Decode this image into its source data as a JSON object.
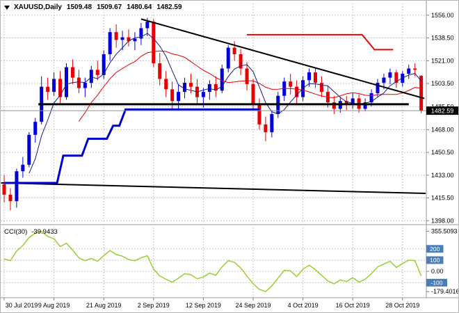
{
  "title_bar": {
    "symbol": "XAUUSD,Daily",
    "open": "1509.48",
    "high": "1509.67",
    "low": "1480.64",
    "close": "1482.59"
  },
  "indicator_panel": {
    "label": "CCI(30)",
    "value": "-39.9433"
  },
  "colors": {
    "bull": "#0000dd",
    "bear": "#e60000",
    "ma_fast": "#1a1a86",
    "ma_slow": "#e60000",
    "grid": "#c6c6c6",
    "object_black": "#000000",
    "object_blue": "#0000cc",
    "object_red": "#f00000",
    "cci_line": "#9acd32",
    "badge_blue": "#4a7ebb",
    "badge_text": "#ffffff",
    "price_badge_bg": "#000000",
    "price_badge_text": "#ffffff",
    "axis_text": "#000000",
    "separator": "#9a9a9a",
    "tick": "#808080",
    "current_price_line": "#909090"
  },
  "chart_data": {
    "type": "candlestick",
    "symbol": "XAUUSD",
    "timeframe": "Daily",
    "current_price": {
      "value": 1482.59,
      "text": "1482.59"
    },
    "price_axis": {
      "min": 1396,
      "max": 1565,
      "labels": [
        {
          "value": 1556,
          "text": "1556.00"
        },
        {
          "value": 1538.5,
          "text": "1538.50"
        },
        {
          "value": 1521,
          "text": "1521.00"
        },
        {
          "value": 1503.5,
          "text": "1503.50"
        },
        {
          "value": 1485.5,
          "text": "1485.50"
        },
        {
          "value": 1468,
          "text": "1468.00"
        },
        {
          "value": 1450.5,
          "text": "1450.50"
        },
        {
          "value": 1433,
          "text": "1433.00"
        },
        {
          "value": 1415.5,
          "text": "1415.50"
        },
        {
          "value": 1398,
          "text": "1398.00"
        }
      ]
    },
    "time_axis": {
      "labels": [
        {
          "text": "30 Jul 2019",
          "index": 0
        },
        {
          "text": "9 Aug 2019",
          "index": 8
        },
        {
          "text": "21 Aug 2019",
          "index": 16
        },
        {
          "text": "2 Sep 2019",
          "index": 24
        },
        {
          "text": "12 Sep 2019",
          "index": 32
        },
        {
          "text": "24 Sep 2019",
          "index": 40
        },
        {
          "text": "4 Oct 2019",
          "index": 48
        },
        {
          "text": "16 Oct 2019",
          "index": 56
        },
        {
          "text": "28 Oct 2019",
          "index": 64
        }
      ]
    },
    "candles": [
      [
        1426,
        1433,
        1412,
        1418
      ],
      [
        1418,
        1423,
        1406,
        1413
      ],
      [
        1413,
        1438,
        1408,
        1436
      ],
      [
        1436,
        1447,
        1431,
        1441
      ],
      [
        1441,
        1466,
        1439,
        1464
      ],
      [
        1464,
        1477,
        1458,
        1474
      ],
      [
        1474,
        1509,
        1472,
        1501
      ],
      [
        1501,
        1508,
        1491,
        1497
      ],
      [
        1497,
        1512,
        1494,
        1507
      ],
      [
        1507,
        1513,
        1487,
        1493
      ],
      [
        1493,
        1519,
        1491,
        1516
      ],
      [
        1516,
        1522,
        1503,
        1508
      ],
      [
        1508,
        1514,
        1496,
        1500
      ],
      [
        1500,
        1508,
        1493,
        1504
      ],
      [
        1504,
        1517,
        1500,
        1514
      ],
      [
        1514,
        1521,
        1506,
        1510
      ],
      [
        1510,
        1529,
        1507,
        1526
      ],
      [
        1526,
        1546,
        1521,
        1543
      ],
      [
        1543,
        1549,
        1531,
        1537
      ],
      [
        1537,
        1544,
        1529,
        1539
      ],
      [
        1539,
        1545,
        1532,
        1536
      ],
      [
        1536,
        1543,
        1529,
        1538
      ],
      [
        1538,
        1550,
        1533,
        1546
      ],
      [
        1546,
        1554,
        1540,
        1551
      ],
      [
        1551,
        1553,
        1516,
        1519
      ],
      [
        1519,
        1527,
        1502,
        1507
      ],
      [
        1507,
        1513,
        1493,
        1499
      ],
      [
        1499,
        1505,
        1484,
        1490
      ],
      [
        1490,
        1503,
        1483,
        1497
      ],
      [
        1497,
        1508,
        1492,
        1504
      ],
      [
        1504,
        1511,
        1496,
        1501
      ],
      [
        1501,
        1507,
        1487,
        1493
      ],
      [
        1493,
        1500,
        1485,
        1497
      ],
      [
        1497,
        1506,
        1491,
        1503
      ],
      [
        1503,
        1509,
        1493,
        1498
      ],
      [
        1498,
        1518,
        1496,
        1515
      ],
      [
        1515,
        1533,
        1512,
        1531
      ],
      [
        1531,
        1536,
        1521,
        1526
      ],
      [
        1526,
        1530,
        1510,
        1515
      ],
      [
        1515,
        1520,
        1498,
        1503
      ],
      [
        1503,
        1507,
        1484,
        1488
      ],
      [
        1488,
        1492,
        1468,
        1472
      ],
      [
        1472,
        1478,
        1459,
        1466
      ],
      [
        1466,
        1483,
        1462,
        1480
      ],
      [
        1480,
        1497,
        1477,
        1494
      ],
      [
        1494,
        1508,
        1490,
        1505
      ],
      [
        1505,
        1511,
        1495,
        1501
      ],
      [
        1501,
        1506,
        1488,
        1493
      ],
      [
        1493,
        1509,
        1490,
        1506
      ],
      [
        1506,
        1515,
        1501,
        1512
      ],
      [
        1512,
        1516,
        1500,
        1504
      ],
      [
        1504,
        1509,
        1493,
        1497
      ],
      [
        1497,
        1502,
        1485,
        1489
      ],
      [
        1489,
        1494,
        1480,
        1484
      ],
      [
        1484,
        1493,
        1481,
        1490
      ],
      [
        1490,
        1494,
        1483,
        1487
      ],
      [
        1487,
        1496,
        1484,
        1492
      ],
      [
        1492,
        1495,
        1481,
        1484
      ],
      [
        1484,
        1492,
        1482,
        1489
      ],
      [
        1489,
        1499,
        1486,
        1496
      ],
      [
        1496,
        1507,
        1493,
        1504
      ],
      [
        1504,
        1511,
        1499,
        1508
      ],
      [
        1508,
        1515,
        1503,
        1512
      ],
      [
        1512,
        1514,
        1500,
        1504
      ],
      [
        1504,
        1513,
        1501,
        1511
      ],
      [
        1511,
        1518,
        1507,
        1515
      ],
      [
        1515,
        1519,
        1509,
        1514
      ],
      [
        1509.48,
        1509.67,
        1480.64,
        1482.59
      ]
    ],
    "moving_averages": {
      "fast_period": 5,
      "slow_period": 13
    },
    "objects": [
      {
        "name": "descending-trendline",
        "color_key": "object_black",
        "width": 2,
        "points": [
          [
            22,
            1553
          ],
          [
            67.5,
            1492
          ]
        ]
      },
      {
        "name": "lower-trendline",
        "color_key": "object_black",
        "width": 2,
        "points": [
          [
            -0.5,
            1427
          ],
          [
            68.5,
            1419
          ]
        ]
      },
      {
        "name": "horizontal-support-line",
        "color_key": "object_black",
        "width": 3,
        "points": [
          [
            5.5,
            1487.5
          ],
          [
            65,
            1487.5
          ]
        ]
      },
      {
        "name": "resistance-line-red",
        "color_key": "object_red",
        "width": 2,
        "points": [
          [
            39,
            1541
          ],
          [
            57.5,
            1541
          ],
          [
            59.5,
            1529.5
          ],
          [
            62.5,
            1529.5
          ]
        ]
      },
      {
        "name": "stepped-support-blue",
        "color_key": "object_blue",
        "width": 3,
        "points": [
          [
            0,
            1427
          ],
          [
            8.5,
            1427
          ],
          [
            9.5,
            1448
          ],
          [
            12.5,
            1448
          ],
          [
            13.5,
            1461
          ],
          [
            16.5,
            1461
          ],
          [
            17.5,
            1471
          ],
          [
            18.5,
            1471
          ],
          [
            19.5,
            1483.5
          ],
          [
            41,
            1483.5
          ]
        ]
      }
    ],
    "cci": {
      "period": 30,
      "range": {
        "min": -215,
        "max": 390
      },
      "extreme_labels": {
        "max": {
          "value": 355.5093,
          "text": "355.5093"
        },
        "min": {
          "value": -179.4016,
          "text": "-179.4016"
        }
      },
      "levels": [
        {
          "value": 200,
          "text": "200",
          "badge": true
        },
        {
          "value": 100,
          "text": "100",
          "badge": true
        },
        {
          "value": 0,
          "text": "0.00",
          "badge": false
        },
        {
          "value": -100,
          "text": "-100",
          "badge": true
        }
      ],
      "values": [
        110,
        95,
        180,
        230,
        300,
        340,
        355.5,
        310,
        290,
        220,
        250,
        190,
        120,
        95,
        115,
        90,
        140,
        185,
        150,
        135,
        105,
        95,
        120,
        140,
        20,
        -40,
        -70,
        -95,
        -60,
        -20,
        -30,
        -65,
        -50,
        -15,
        -35,
        40,
        95,
        80,
        30,
        -40,
        -110,
        -160,
        -179.4,
        -130,
        -60,
        10,
        5,
        -45,
        20,
        55,
        15,
        -35,
        -85,
        -110,
        -75,
        -90,
        -55,
        -95,
        -70,
        -20,
        40,
        65,
        90,
        35,
        70,
        100,
        95,
        -39.94
      ]
    }
  }
}
